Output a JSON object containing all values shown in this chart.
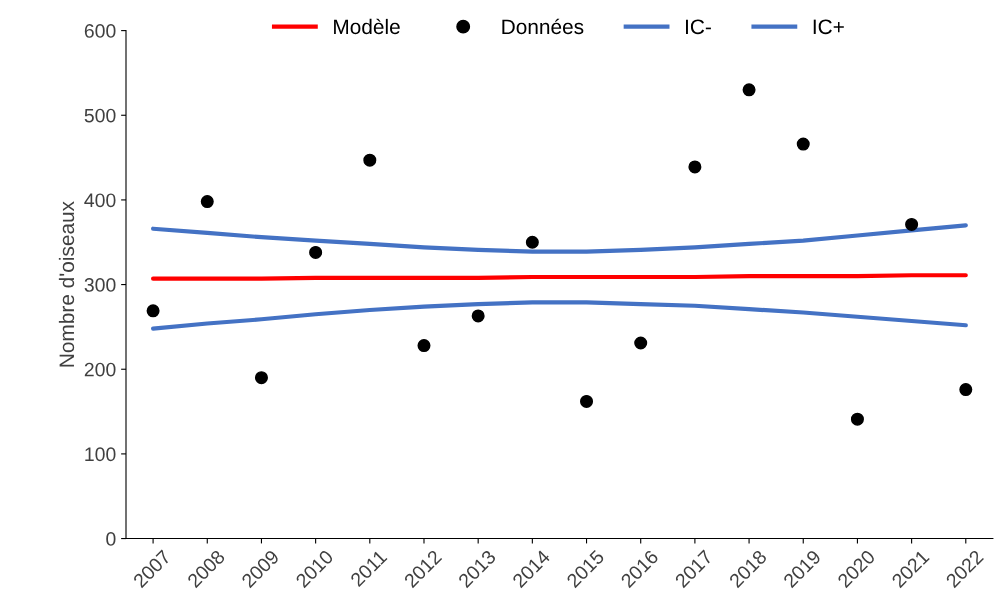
{
  "chart_data": {
    "type": "line",
    "ylabel": "Nombre d'oiseaux",
    "categories": [
      "2007",
      "2008",
      "2009",
      "2010",
      "2011",
      "2012",
      "2013",
      "2014",
      "2015",
      "2016",
      "2017",
      "2018",
      "2019",
      "2020",
      "2021",
      "2022"
    ],
    "ylim": [
      0,
      600
    ],
    "yticks": [
      0,
      100,
      200,
      300,
      400,
      500,
      600
    ],
    "grid": false,
    "legend": "top",
    "series": [
      {
        "name": "Modèle",
        "color": "#ff0000",
        "values": [
          307,
          307,
          307,
          308,
          308,
          308,
          308,
          309,
          309,
          309,
          309,
          310,
          310,
          310,
          311,
          311
        ]
      },
      {
        "name": "Données",
        "type": "scatter",
        "marker": "circle",
        "color": "#000000",
        "values": [
          269,
          398,
          190,
          338,
          447,
          228,
          263,
          350,
          162,
          231,
          439,
          530,
          466,
          141,
          371,
          176
        ]
      },
      {
        "name": "IC-",
        "color": "#4472c4",
        "values": [
          248,
          254,
          259,
          265,
          270,
          274,
          277,
          279,
          279,
          277,
          275,
          271,
          267,
          262,
          257,
          252
        ]
      },
      {
        "name": "IC+",
        "color": "#4472c4",
        "values": [
          366,
          361,
          356,
          352,
          348,
          344,
          341,
          339,
          339,
          341,
          344,
          348,
          352,
          358,
          364,
          370
        ]
      }
    ]
  }
}
